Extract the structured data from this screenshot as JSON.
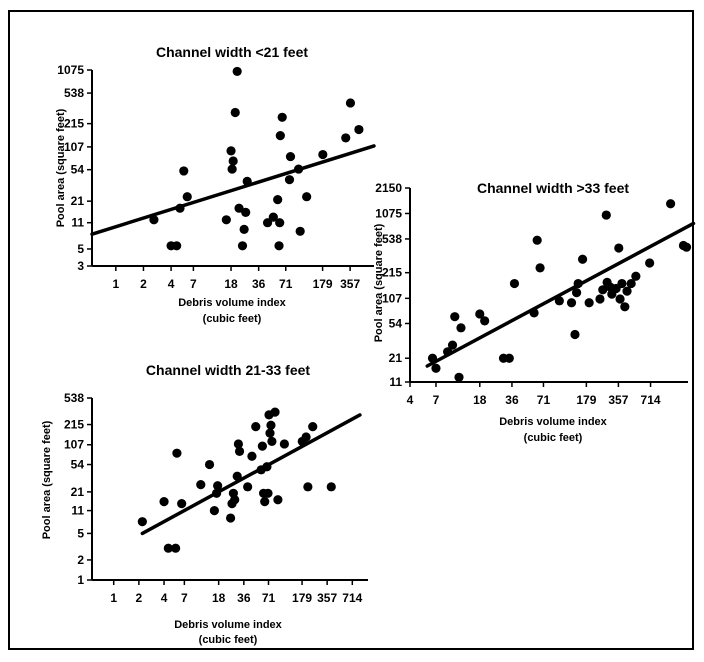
{
  "chart_data": [
    {
      "type": "scatter",
      "title": "Channel width <21 feet",
      "xlabel_line1": "Debris volume index",
      "xlabel_line2": "(cubic feet)",
      "ylabel": "Pool area (square feet)",
      "x_scale": "log",
      "y_scale": "log",
      "x_ticks": [
        "1",
        "2",
        "4",
        "7",
        "18",
        "36",
        "71",
        "179",
        "357"
      ],
      "y_ticks": [
        "3",
        "5",
        "11",
        "21",
        "54",
        "107",
        "215",
        "538",
        "1075"
      ],
      "xlim": [
        0.55,
        650
      ],
      "ylim": [
        3,
        1075
      ],
      "points": [
        [
          2.6,
          12
        ],
        [
          4,
          5.5
        ],
        [
          4.6,
          5.5
        ],
        [
          5,
          17
        ],
        [
          5.5,
          52
        ],
        [
          6,
          24
        ],
        [
          16,
          12
        ],
        [
          18,
          95
        ],
        [
          18.5,
          55
        ],
        [
          19,
          70
        ],
        [
          20,
          300
        ],
        [
          21,
          1030
        ],
        [
          22,
          17
        ],
        [
          24,
          5.5
        ],
        [
          25,
          9
        ],
        [
          26,
          15
        ],
        [
          27,
          38
        ],
        [
          45,
          11
        ],
        [
          52,
          13
        ],
        [
          58,
          22
        ],
        [
          60,
          5.5
        ],
        [
          61,
          11
        ],
        [
          62,
          150
        ],
        [
          65,
          260
        ],
        [
          78,
          40
        ],
        [
          80,
          80
        ],
        [
          98,
          55
        ],
        [
          102,
          8.5
        ],
        [
          120,
          24
        ],
        [
          180,
          85
        ],
        [
          320,
          140
        ],
        [
          360,
          400
        ],
        [
          445,
          180
        ]
      ],
      "trend_line": [
        [
          0.55,
          7.8
        ],
        [
          650,
          110
        ]
      ]
    },
    {
      "type": "scatter",
      "title": "Channel width >33 feet",
      "xlabel_line1": "Debris volume index",
      "xlabel_line2": "(cubic feet)",
      "ylabel": "Pool area (square feet)",
      "x_scale": "log",
      "y_scale": "log",
      "x_ticks": [
        "4",
        "7",
        "18",
        "36",
        "71",
        "179",
        "357",
        "714"
      ],
      "y_ticks": [
        "11",
        "21",
        "54",
        "107",
        "215",
        "538",
        "1075",
        "2150"
      ],
      "xlim": [
        4,
        1600
      ],
      "ylim": [
        11,
        2150
      ],
      "points": [
        [
          6.5,
          21
        ],
        [
          7,
          16
        ],
        [
          9,
          25
        ],
        [
          10,
          30
        ],
        [
          10.5,
          65
        ],
        [
          11.5,
          12.5
        ],
        [
          12,
          48
        ],
        [
          18,
          70
        ],
        [
          20,
          58
        ],
        [
          30,
          21
        ],
        [
          34,
          21
        ],
        [
          38,
          160
        ],
        [
          58,
          72
        ],
        [
          62,
          520
        ],
        [
          66,
          245
        ],
        [
          100,
          100
        ],
        [
          130,
          95
        ],
        [
          140,
          40
        ],
        [
          145,
          125
        ],
        [
          150,
          160
        ],
        [
          165,
          310
        ],
        [
          190,
          95
        ],
        [
          240,
          105
        ],
        [
          255,
          135
        ],
        [
          275,
          1030
        ],
        [
          280,
          165
        ],
        [
          300,
          145
        ],
        [
          310,
          120
        ],
        [
          340,
          140
        ],
        [
          360,
          420
        ],
        [
          370,
          105
        ],
        [
          385,
          160
        ],
        [
          410,
          85
        ],
        [
          430,
          130
        ],
        [
          470,
          160
        ],
        [
          520,
          195
        ],
        [
          700,
          280
        ],
        [
          1100,
          1400
        ],
        [
          1450,
          450
        ],
        [
          1550,
          430
        ]
      ],
      "trend_line": [
        [
          5.8,
          17
        ],
        [
          1800,
          820
        ]
      ]
    },
    {
      "type": "scatter",
      "title": "Channel width 21-33 feet",
      "xlabel_line1": "Debris volume index",
      "xlabel_line2": "(cubic feet)",
      "ylabel": "Pool area (square feet)",
      "x_scale": "log",
      "y_scale": "log",
      "x_ticks": [
        "1",
        "2",
        "4",
        "7",
        "18",
        "36",
        "71",
        "179",
        "357",
        "714"
      ],
      "y_ticks": [
        "1",
        "2",
        "5",
        "11",
        "21",
        "54",
        "107",
        "215",
        "538"
      ],
      "xlim": [
        0.55,
        1100
      ],
      "ylim": [
        1,
        538
      ],
      "points": [
        [
          2.2,
          7.5
        ],
        [
          4,
          15
        ],
        [
          4.5,
          3
        ],
        [
          5.5,
          3
        ],
        [
          5.7,
          80
        ],
        [
          6.5,
          14
        ],
        [
          11,
          27
        ],
        [
          14,
          54
        ],
        [
          16,
          11
        ],
        [
          17,
          20
        ],
        [
          17.5,
          26
        ],
        [
          25,
          8.5
        ],
        [
          26,
          14
        ],
        [
          27,
          20
        ],
        [
          28,
          16
        ],
        [
          30,
          36
        ],
        [
          31,
          110
        ],
        [
          32,
          85
        ],
        [
          40,
          25
        ],
        [
          45,
          72
        ],
        [
          50,
          200
        ],
        [
          58,
          45
        ],
        [
          60,
          102
        ],
        [
          62,
          20
        ],
        [
          64,
          15
        ],
        [
          68,
          50
        ],
        [
          70,
          20
        ],
        [
          72,
          300
        ],
        [
          74,
          160
        ],
        [
          76,
          210
        ],
        [
          78,
          120
        ],
        [
          85,
          330
        ],
        [
          92,
          16
        ],
        [
          110,
          110
        ],
        [
          180,
          120
        ],
        [
          200,
          140
        ],
        [
          210,
          25
        ],
        [
          240,
          200
        ],
        [
          400,
          25
        ]
      ],
      "trend_line": [
        [
          2.2,
          5
        ],
        [
          880,
          300
        ]
      ]
    }
  ]
}
